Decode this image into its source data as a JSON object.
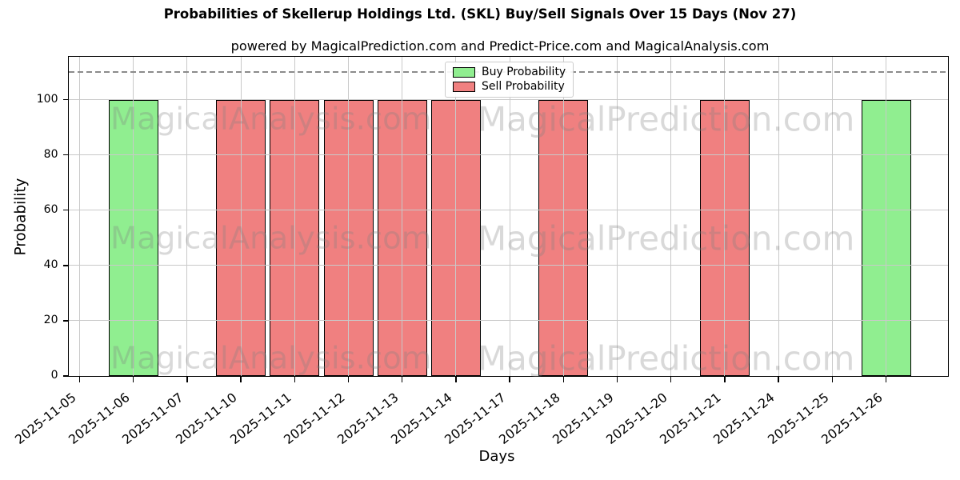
{
  "title": "Probabilities of Skellerup Holdings Ltd. (SKL) Buy/Sell Signals Over 15 Days (Nov 27)",
  "subtitle": "powered by MagicalPrediction.com and Predict-Price.com and MagicalAnalysis.com",
  "watermarks": {
    "left_text": "MagicalAnalysis.com",
    "right_text": "MagicalPrediction.com"
  },
  "legend": {
    "items": [
      {
        "label": "Buy Probability",
        "color": "#90EE90"
      },
      {
        "label": "Sell Probability",
        "color": "#F08080"
      }
    ]
  },
  "chart_data": {
    "type": "bar",
    "title": "Probabilities of Skellerup Holdings Ltd. (SKL) Buy/Sell Signals Over 15 Days (Nov 27)",
    "xlabel": "Days",
    "ylabel": "Probability",
    "categories": [
      "2025-11-05",
      "2025-11-06",
      "2025-11-07",
      "2025-11-10",
      "2025-11-11",
      "2025-11-12",
      "2025-11-13",
      "2025-11-14",
      "2025-11-17",
      "2025-11-18",
      "2025-11-19",
      "2025-11-20",
      "2025-11-21",
      "2025-11-24",
      "2025-11-25",
      "2025-11-26"
    ],
    "series": [
      {
        "name": "Buy Probability",
        "color": "#90EE90",
        "values": [
          0,
          100,
          0,
          0,
          0,
          0,
          0,
          0,
          0,
          0,
          0,
          0,
          0,
          0,
          0,
          100
        ]
      },
      {
        "name": "Sell Probability",
        "color": "#F08080",
        "values": [
          0,
          0,
          0,
          100,
          100,
          100,
          100,
          100,
          0,
          100,
          0,
          0,
          100,
          0,
          0,
          0
        ]
      }
    ],
    "ylim": [
      0,
      115.5
    ],
    "yticks": [
      0,
      20,
      40,
      60,
      80,
      100
    ],
    "threshold_line": {
      "y": 110,
      "style": "dashed",
      "color": "#8c8c8c"
    },
    "grid": true,
    "bar_edge_color": "#000000",
    "legend_position": "upper center"
  }
}
